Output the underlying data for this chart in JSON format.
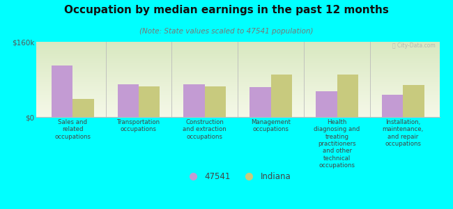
{
  "title": "Occupation by median earnings in the past 12 months",
  "subtitle": "(Note: State values scaled to 47541 population)",
  "background_color": "#00FFFF",
  "ylim": [
    0,
    160000
  ],
  "ytick_labels": [
    "$0",
    "$160k"
  ],
  "categories": [
    "Sales and\nrelated\noccupations",
    "Transportation\noccupations",
    "Construction\nand extraction\noccupations",
    "Management\noccupations",
    "Health\ndiagnosing and\ntreating\npractitioners\nand other\ntechnical\noccupations",
    "Installation,\nmaintenance,\nand repair\noccupations"
  ],
  "values_47541": [
    110000,
    70000,
    70000,
    63000,
    55000,
    48000
  ],
  "values_indiana": [
    38000,
    65000,
    65000,
    90000,
    90000,
    68000
  ],
  "color_47541": "#c39bd3",
  "color_indiana": "#c8ca7e",
  "legend_47541": "47541",
  "legend_indiana": "Indiana",
  "bar_width": 0.32,
  "watermark": "Ⓣ City-Data.com"
}
